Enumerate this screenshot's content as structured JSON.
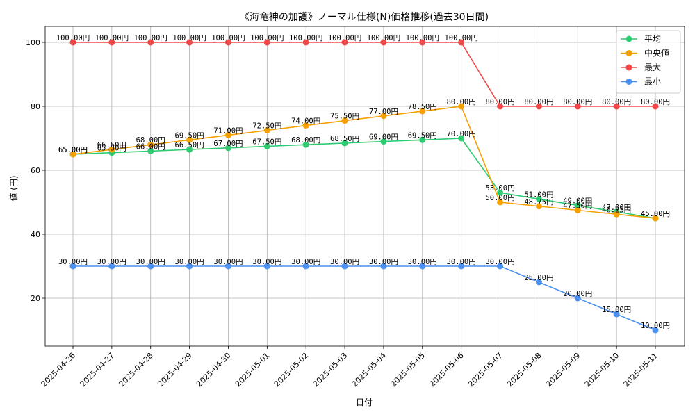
{
  "chart_data": {
    "type": "line",
    "title": "《海竜神の加護》ノーマル仕様(N)価格推移(過去30日間)",
    "xlabel": "日付",
    "ylabel": "値 (円)",
    "ylim": [
      5,
      105
    ],
    "yticks": [
      20,
      40,
      60,
      80,
      100
    ],
    "grid": true,
    "legend_position": "top-right",
    "value_suffix": "円",
    "categories": [
      "2025-04-26",
      "2025-04-27",
      "2025-04-28",
      "2025-04-29",
      "2025-04-30",
      "2025-05-01",
      "2025-05-02",
      "2025-05-03",
      "2025-05-04",
      "2025-05-05",
      "2025-05-06",
      "2025-05-07",
      "2025-05-08",
      "2025-05-09",
      "2025-05-10",
      "2025-05-11"
    ],
    "series": [
      {
        "name": "平均",
        "color": "#2ecc71",
        "values": [
          65,
          65.5,
          66,
          66.5,
          67,
          67.5,
          68,
          68.5,
          69,
          69.5,
          70,
          53,
          51,
          49,
          47,
          45
        ]
      },
      {
        "name": "中央値",
        "color": "#f5a000",
        "values": [
          65,
          66.5,
          68,
          69.5,
          71,
          72.5,
          74,
          75.5,
          77,
          78.5,
          80,
          50,
          48.75,
          47.5,
          46.25,
          45
        ]
      },
      {
        "name": "最大",
        "color": "#f04848",
        "values": [
          100,
          100,
          100,
          100,
          100,
          100,
          100,
          100,
          100,
          100,
          100,
          80,
          80,
          80,
          80,
          80
        ]
      },
      {
        "name": "最小",
        "color": "#4a90f0",
        "values": [
          30,
          30,
          30,
          30,
          30,
          30,
          30,
          30,
          30,
          30,
          30,
          30,
          25,
          20,
          15,
          10
        ]
      }
    ]
  }
}
